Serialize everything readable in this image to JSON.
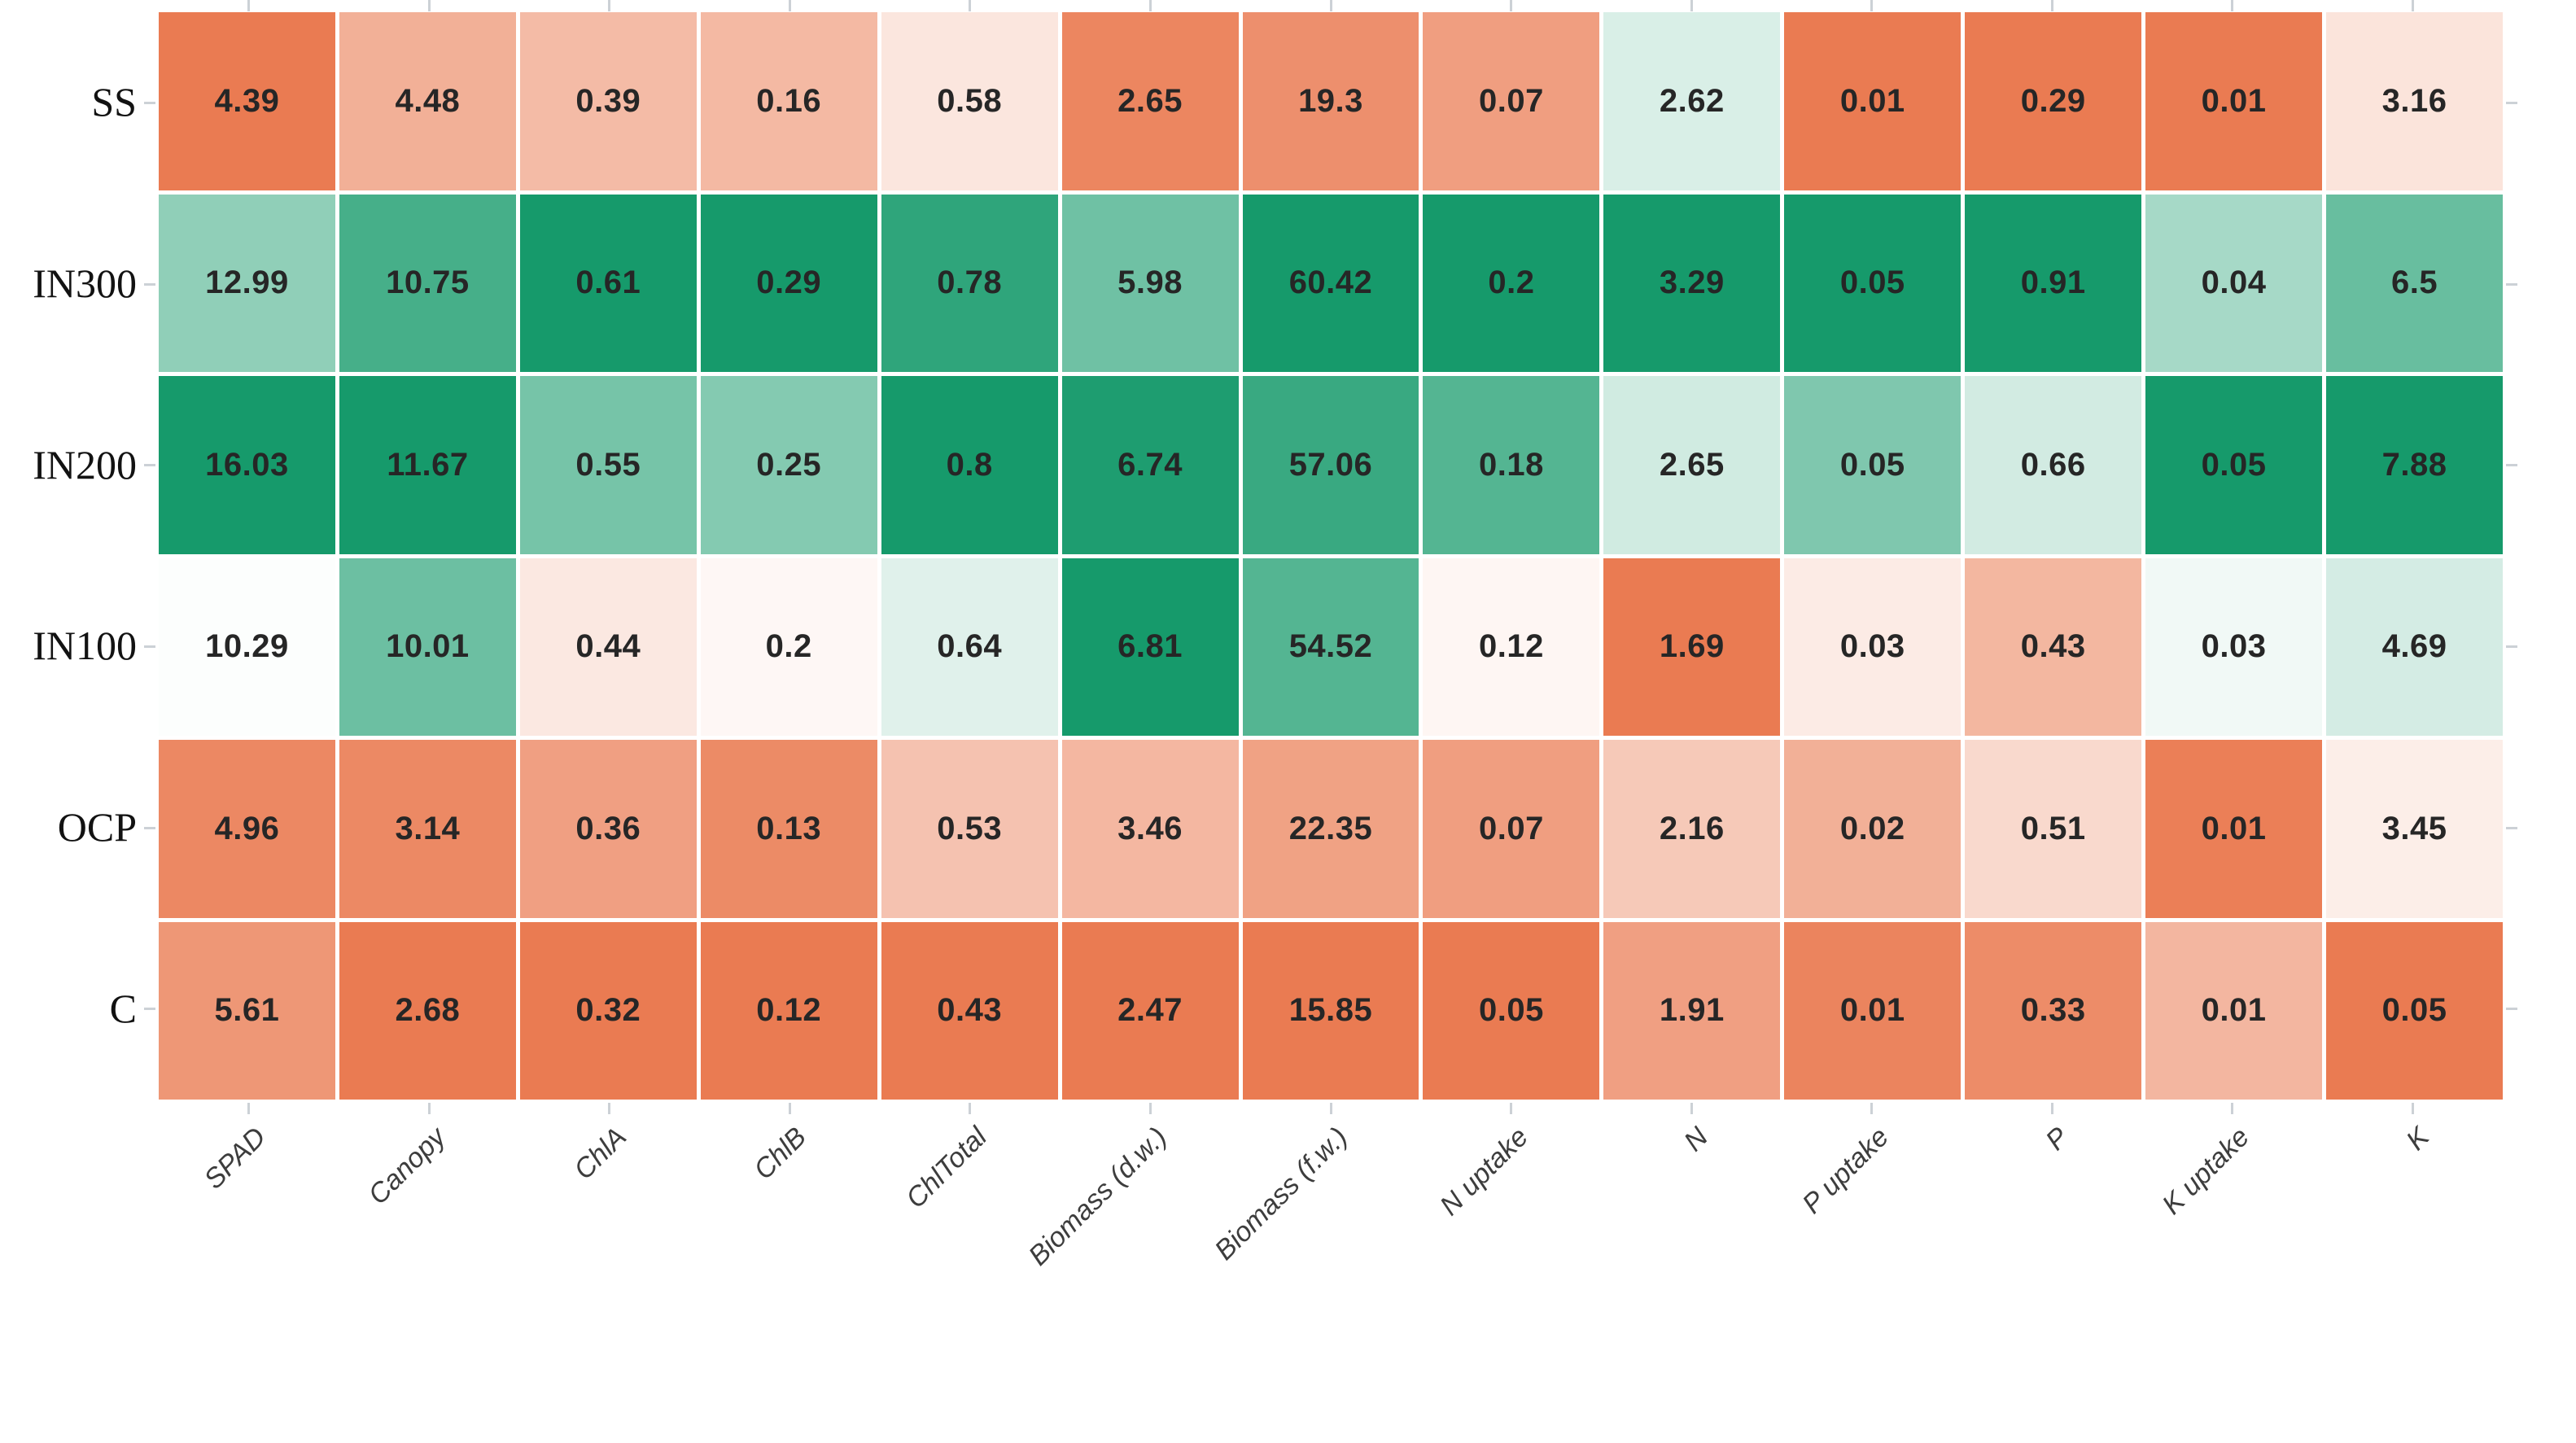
{
  "chart_data": {
    "type": "heatmap",
    "title": "",
    "xlabel": "",
    "ylabel": "",
    "legend": "none",
    "grid": "white gaps between cells",
    "x_tick_angle": 45,
    "rows": [
      "SS",
      "IN300",
      "IN200",
      "IN100",
      "OCP",
      "C"
    ],
    "columns": [
      "SPAD",
      "Canopy",
      "ChlA",
      "ChlB",
      "ChlTotal",
      "Biomass (d.w.)",
      "Biomass (f.w.)",
      "N uptake",
      "N",
      "P uptake",
      "P",
      "K uptake",
      "K"
    ],
    "values": [
      [
        "4.39",
        "4.48",
        "0.39",
        "0.16",
        "0.58",
        "2.65",
        "19.3",
        "0.07",
        "2.62",
        "0.01",
        "0.29",
        "0.01",
        "3.16"
      ],
      [
        "12.99",
        "10.75",
        "0.61",
        "0.29",
        "0.78",
        "5.98",
        "60.42",
        "0.2",
        "3.29",
        "0.05",
        "0.91",
        "0.04",
        "6.5"
      ],
      [
        "16.03",
        "11.67",
        "0.55",
        "0.25",
        "0.8",
        "6.74",
        "57.06",
        "0.18",
        "2.65",
        "0.05",
        "0.66",
        "0.05",
        "7.88"
      ],
      [
        "10.29",
        "10.01",
        "0.44",
        "0.2",
        "0.64",
        "6.81",
        "54.52",
        "0.12",
        "1.69",
        "0.03",
        "0.43",
        "0.03",
        "4.69"
      ],
      [
        "4.96",
        "3.14",
        "0.36",
        "0.13",
        "0.53",
        "3.46",
        "22.35",
        "0.07",
        "2.16",
        "0.02",
        "0.51",
        "0.01",
        "3.45"
      ],
      [
        "5.61",
        "2.68",
        "0.32",
        "0.12",
        "0.43",
        "2.47",
        "15.85",
        "0.05",
        "1.91",
        "0.01",
        "0.33",
        "0.01",
        "0.05"
      ]
    ],
    "cell_colors": [
      [
        "#EA7B52",
        "#F2B097",
        "#F4BBA6",
        "#F4B9A3",
        "#FBE6DE",
        "#EC8660",
        "#ED8F6D",
        "#F09E80",
        "#D9EFE7",
        "#EA7B52",
        "#EA7B52",
        "#EA7B52",
        "#FBE4DB"
      ],
      [
        "#90CFB8",
        "#46AF89",
        "#169A6B",
        "#169A6B",
        "#2FA57B",
        "#6FC1A4",
        "#169A6B",
        "#169A6B",
        "#169A6B",
        "#169A6B",
        "#169A6B",
        "#A6D9C7",
        "#68BE9F"
      ],
      [
        "#169A6B",
        "#169A6B",
        "#76C4A8",
        "#84CAB1",
        "#169A6B",
        "#1E9D70",
        "#39A981",
        "#54B592",
        "#D0EBE1",
        "#7FC7AE",
        "#D2EBE2",
        "#169A6B",
        "#169A6B"
      ],
      [
        "#FCFEFD",
        "#6CBFA2",
        "#FBE8E1",
        "#FEF7F5",
        "#E0F1EB",
        "#169A6B",
        "#54B592",
        "#FEF6F3",
        "#EA7B52",
        "#FCEBE5",
        "#F3B7A0",
        "#F1F9F6",
        "#D4ECE4"
      ],
      [
        "#EC8863",
        "#EC8964",
        "#F09F82",
        "#EC8B66",
        "#F5C2B0",
        "#F4B7A1",
        "#F0A284",
        "#F09E80",
        "#F6C9B8",
        "#F2B097",
        "#F9D9CD",
        "#EB7F57",
        "#FCEEE8"
      ],
      [
        "#EE9776",
        "#EA7B52",
        "#EA7B52",
        "#EA7B52",
        "#EA7B52",
        "#EA7B52",
        "#EA7B52",
        "#EA7B52",
        "#F09F82",
        "#EB845E",
        "#ED8C68",
        "#F3B6A0",
        "#EA7B52"
      ]
    ],
    "colorscale": {
      "low": "#EA7B52",
      "mid": "#FFFFFF",
      "high": "#169A6B"
    },
    "tick_color": "#CCD1D6",
    "gap_color": "#FFFFFF"
  }
}
